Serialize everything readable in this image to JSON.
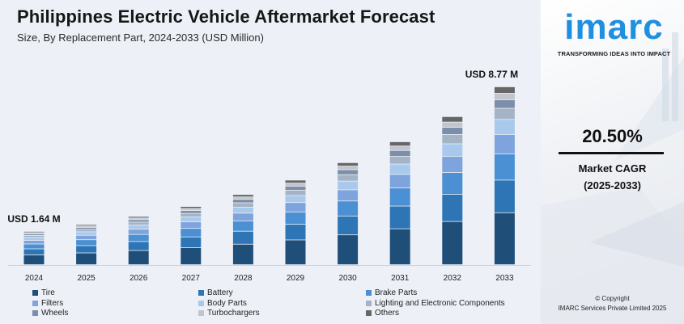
{
  "header": {
    "title": "Philippines Electric Vehicle Aftermarket Forecast",
    "subtitle": "Size, By Replacement Part, 2024-2033 (USD Million)"
  },
  "chart_data": {
    "type": "bar",
    "stacked": true,
    "title": "Philippines Electric Vehicle Aftermarket Forecast",
    "subtitle": "Size, By Replacement Part, 2024-2033 (USD Million)",
    "categories": [
      "2024",
      "2025",
      "2026",
      "2027",
      "2028",
      "2029",
      "2030",
      "2031",
      "2032",
      "2033"
    ],
    "totals": [
      1.64,
      1.98,
      2.38,
      2.87,
      3.46,
      4.17,
      5.03,
      6.06,
      7.3,
      8.77
    ],
    "annotations": [
      {
        "category": "2024",
        "text": "USD 1.64 M"
      },
      {
        "category": "2033",
        "text": "USD 8.77 M"
      }
    ],
    "series": [
      {
        "name": "Tire",
        "color": "#1f4e79",
        "values": [
          0.48,
          0.58,
          0.7,
          0.84,
          1.01,
          1.22,
          1.47,
          1.77,
          2.13,
          2.56
        ]
      },
      {
        "name": "Battery",
        "color": "#2e75b6",
        "values": [
          0.3,
          0.36,
          0.44,
          0.53,
          0.64,
          0.77,
          0.93,
          1.12,
          1.34,
          1.61
        ]
      },
      {
        "name": "Brake Parts",
        "color": "#4a90d2",
        "values": [
          0.24,
          0.29,
          0.35,
          0.42,
          0.51,
          0.61,
          0.74,
          0.89,
          1.07,
          1.29
        ]
      },
      {
        "name": "Filters",
        "color": "#7fa3dc",
        "values": [
          0.18,
          0.22,
          0.26,
          0.32,
          0.38,
          0.46,
          0.55,
          0.67,
          0.8,
          0.96
        ]
      },
      {
        "name": "Body Parts",
        "color": "#a9c9ec",
        "values": [
          0.14,
          0.17,
          0.2,
          0.24,
          0.29,
          0.35,
          0.43,
          0.51,
          0.62,
          0.74
        ]
      },
      {
        "name": "Lighting and Electronic Components",
        "color": "#a5b3c6",
        "values": [
          0.1,
          0.12,
          0.15,
          0.18,
          0.22,
          0.26,
          0.32,
          0.38,
          0.46,
          0.55
        ]
      },
      {
        "name": "Wheels",
        "color": "#7b8faa",
        "values": [
          0.08,
          0.1,
          0.12,
          0.14,
          0.17,
          0.2,
          0.24,
          0.29,
          0.35,
          0.42
        ]
      },
      {
        "name": "Turbochargers",
        "color": "#c2c6cc",
        "values": [
          0.06,
          0.07,
          0.08,
          0.1,
          0.12,
          0.15,
          0.18,
          0.22,
          0.26,
          0.32
        ]
      },
      {
        "name": "Others",
        "color": "#666666",
        "values": [
          0.06,
          0.07,
          0.08,
          0.1,
          0.12,
          0.15,
          0.17,
          0.21,
          0.27,
          0.32
        ]
      }
    ],
    "ylim": [
      0,
      9.4
    ],
    "grid": false,
    "legend_placement": "bottom"
  },
  "side_panel": {
    "logo": "imarc",
    "tagline": "TRANSFORMING IDEAS INTO IMPACT",
    "cagr_value": "20.50%",
    "cagr_label": "Market CAGR",
    "cagr_period": "(2025-2033)",
    "copyright_line1": "© Copyright",
    "copyright_line2": "IMARC Services Private Limited 2025"
  }
}
